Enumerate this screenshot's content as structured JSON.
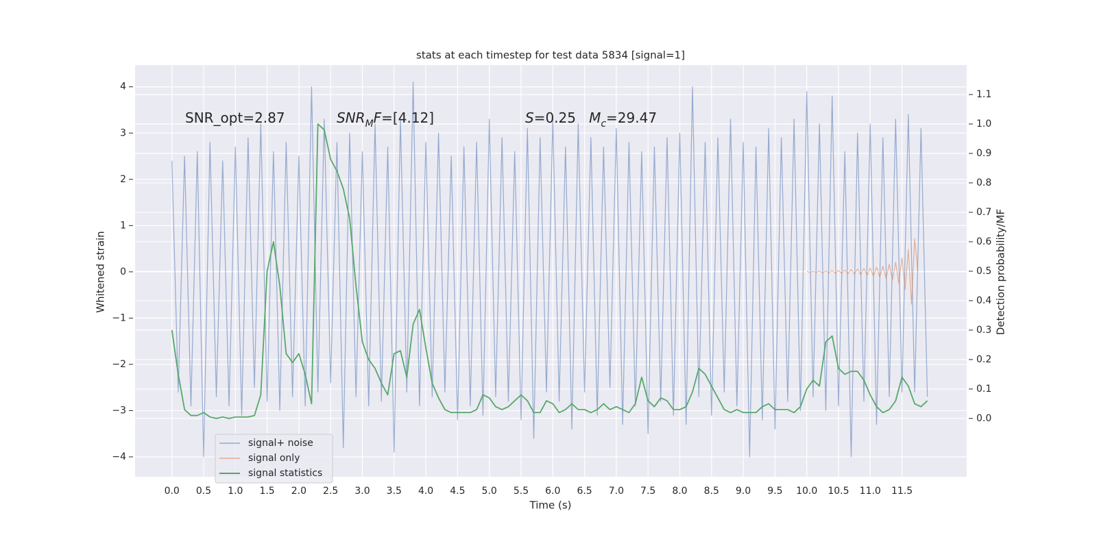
{
  "chart_data": {
    "type": "line",
    "title": "stats at each timestep for test data 5834 [signal=1]",
    "xlabel": "Time (s)",
    "ylabel": "Whitened strain",
    "y2label": "Detection probability/MF",
    "grid": true,
    "legend": "lower left",
    "annotations": [
      [
        {
          "text": "SNR_opt=2.87"
        }
      ],
      [
        {
          "text": "SNR",
          "italic": true
        },
        {
          "text": "M",
          "italic": true,
          "sub": true
        },
        {
          "text": "F",
          "italic": true
        },
        {
          "text": "=[4.12]"
        }
      ],
      [
        {
          "text": "S",
          "italic": true
        },
        {
          "text": "=0.25   "
        },
        {
          "text": "M",
          "italic": true
        },
        {
          "text": "c",
          "italic": true,
          "sub": true
        },
        {
          "text": "=29.47"
        }
      ]
    ],
    "xlim": [
      -0.58,
      12.52
    ],
    "ylim": [
      -4.43,
      4.47
    ],
    "y2lim": [
      -0.198,
      1.2
    ],
    "xticks": [
      {
        "value": 0,
        "label": "0.0"
      },
      {
        "value": 0.5,
        "label": "0.5"
      },
      {
        "value": 1,
        "label": "1.0"
      },
      {
        "value": 1.5,
        "label": "1.5"
      },
      {
        "value": 2,
        "label": "2.0"
      },
      {
        "value": 2.5,
        "label": "2.5"
      },
      {
        "value": 3,
        "label": "3.0"
      },
      {
        "value": 3.5,
        "label": "3.5"
      },
      {
        "value": 4,
        "label": "4.0"
      },
      {
        "value": 4.5,
        "label": "4.5"
      },
      {
        "value": 5,
        "label": "5.0"
      },
      {
        "value": 5.5,
        "label": "5.5"
      },
      {
        "value": 6,
        "label": "6.0"
      },
      {
        "value": 6.5,
        "label": "6.5"
      },
      {
        "value": 7,
        "label": "7.0"
      },
      {
        "value": 7.5,
        "label": "7.5"
      },
      {
        "value": 8,
        "label": "8.0"
      },
      {
        "value": 8.5,
        "label": "8.5"
      },
      {
        "value": 9,
        "label": "9.0"
      },
      {
        "value": 9.5,
        "label": "9.5"
      },
      {
        "value": 10,
        "label": "10.0"
      },
      {
        "value": 10.5,
        "label": "10.5"
      },
      {
        "value": 11,
        "label": "11.0"
      },
      {
        "value": 11.5,
        "label": "11.5"
      }
    ],
    "yticks": [
      {
        "value": -4,
        "label": "−4"
      },
      {
        "value": -3,
        "label": "−3"
      },
      {
        "value": -2,
        "label": "−2"
      },
      {
        "value": -1,
        "label": "−1"
      },
      0,
      1,
      2,
      3,
      4
    ],
    "y2ticks": [
      {
        "value": 0,
        "label": "0.0"
      },
      {
        "value": 0.1,
        "label": "0.1"
      },
      {
        "value": 0.2,
        "label": "0.2"
      },
      {
        "value": 0.3,
        "label": "0.3"
      },
      {
        "value": 0.4,
        "label": "0.4"
      },
      {
        "value": 0.5,
        "label": "0.5"
      },
      {
        "value": 0.6,
        "label": "0.6"
      },
      {
        "value": 0.7,
        "label": "0.7"
      },
      {
        "value": 0.8,
        "label": "0.8"
      },
      {
        "value": 0.9,
        "label": "0.9"
      },
      {
        "value": 1,
        "label": "1.0"
      },
      {
        "value": 1.1,
        "label": "1.1"
      }
    ],
    "x": [
      0.0,
      0.1,
      0.2,
      0.3,
      0.4,
      0.5,
      0.6,
      0.7,
      0.8,
      0.9,
      1.0,
      1.1,
      1.2,
      1.3,
      1.4,
      1.5,
      1.6,
      1.7,
      1.8,
      1.9,
      2.0,
      2.1,
      2.2,
      2.3,
      2.4,
      2.5,
      2.6,
      2.7,
      2.8,
      2.9,
      3.0,
      3.1,
      3.2,
      3.3,
      3.4,
      3.5,
      3.6,
      3.7,
      3.8,
      3.9,
      4.0,
      4.1,
      4.2,
      4.3,
      4.4,
      4.5,
      4.6,
      4.7,
      4.8,
      4.9,
      5.0,
      5.1,
      5.2,
      5.3,
      5.4,
      5.5,
      5.6,
      5.7,
      5.8,
      5.9,
      6.0,
      6.1,
      6.2,
      6.3,
      6.4,
      6.5,
      6.6,
      6.7,
      6.8,
      6.9,
      7.0,
      7.1,
      7.2,
      7.3,
      7.4,
      7.5,
      7.6,
      7.7,
      7.8,
      7.9,
      8.0,
      8.1,
      8.2,
      8.3,
      8.4,
      8.5,
      8.6,
      8.7,
      8.8,
      8.9,
      9.0,
      9.1,
      9.2,
      9.3,
      9.4,
      9.5,
      9.6,
      9.7,
      9.8,
      9.9,
      10.0,
      10.1,
      10.2,
      10.3,
      10.4,
      10.5,
      10.6,
      10.7,
      10.8,
      10.9,
      11.0,
      11.1,
      11.2,
      11.3,
      11.4,
      11.5,
      11.6,
      11.7,
      11.8,
      11.9
    ],
    "series": [
      {
        "name": "signal+ noise",
        "color": "#4c72b0",
        "values": [
          2.4,
          -2.6,
          2.5,
          -2.9,
          2.6,
          -4.0,
          2.8,
          -2.7,
          2.4,
          -2.9,
          2.7,
          -3.1,
          2.9,
          -2.5,
          3.2,
          -2.8,
          2.6,
          -3.0,
          2.8,
          -2.7,
          2.5,
          -2.9,
          4.0,
          -2.6,
          3.3,
          -2.4,
          2.8,
          -3.8,
          3.0,
          -2.7,
          2.6,
          -2.9,
          3.2,
          -2.8,
          2.7,
          -3.9,
          3.3,
          -2.6,
          4.1,
          -2.9,
          2.8,
          -2.7,
          3.0,
          -2.6,
          2.5,
          -3.2,
          2.7,
          -2.9,
          2.8,
          -3.1,
          3.3,
          -2.7,
          2.9,
          -2.8,
          2.6,
          -3.2,
          3.1,
          -3.6,
          2.9,
          -2.6,
          3.3,
          -2.8,
          2.7,
          -3.4,
          3.2,
          -2.6,
          2.9,
          -3.1,
          2.7,
          -2.5,
          3.1,
          -3.3,
          2.8,
          -2.9,
          2.6,
          -3.5,
          2.7,
          -2.8,
          2.9,
          -3.1,
          3.0,
          -3.3,
          4.0,
          -2.7,
          2.8,
          -3.1,
          2.9,
          -2.6,
          3.3,
          -2.9,
          2.8,
          -4.0,
          2.7,
          -3.2,
          3.1,
          -3.4,
          2.9,
          -2.8,
          3.3,
          -3.0,
          3.9,
          -2.7,
          3.2,
          -3.0,
          3.8,
          -2.9,
          2.6,
          -4.0,
          3.0,
          -2.8,
          3.2,
          -3.3,
          2.9,
          -2.7,
          3.3,
          -2.6,
          3.4,
          -2.6,
          3.1,
          -2.7
        ]
      },
      {
        "name": "signal only",
        "color": "#dd8452",
        "x": [
          10.0,
          10.05,
          10.1,
          10.15,
          10.2,
          10.25,
          10.3,
          10.35,
          10.4,
          10.45,
          10.5,
          10.55,
          10.6,
          10.65,
          10.7,
          10.75,
          10.8,
          10.85,
          10.9,
          10.95,
          11.0,
          11.05,
          11.1,
          11.15,
          11.2,
          11.25,
          11.3,
          11.35,
          11.4,
          11.45,
          11.5,
          11.55,
          11.6,
          11.65,
          11.7,
          11.75
        ],
        "values": [
          0.01,
          -0.01,
          0.01,
          -0.01,
          0.02,
          -0.02,
          0.02,
          -0.02,
          0.03,
          -0.03,
          0.03,
          -0.03,
          0.04,
          -0.04,
          0.05,
          -0.05,
          0.06,
          -0.06,
          0.07,
          -0.07,
          0.08,
          -0.09,
          0.1,
          -0.11,
          0.12,
          -0.14,
          0.16,
          -0.18,
          0.21,
          -0.25,
          0.3,
          -0.38,
          0.48,
          -0.7,
          0.72,
          0.0
        ]
      },
      {
        "name": "signal statistics",
        "color": "#55a868",
        "axis": "y2",
        "values": [
          0.3,
          0.15,
          0.03,
          0.01,
          0.01,
          0.02,
          0.005,
          0.0,
          0.005,
          0.0,
          0.005,
          0.005,
          0.005,
          0.01,
          0.08,
          0.5,
          0.6,
          0.45,
          0.22,
          0.19,
          0.22,
          0.15,
          0.05,
          1.0,
          0.98,
          0.88,
          0.84,
          0.78,
          0.68,
          0.45,
          0.26,
          0.2,
          0.17,
          0.12,
          0.08,
          0.22,
          0.23,
          0.14,
          0.32,
          0.37,
          0.24,
          0.12,
          0.07,
          0.03,
          0.02,
          0.02,
          0.02,
          0.02,
          0.03,
          0.08,
          0.07,
          0.04,
          0.03,
          0.04,
          0.06,
          0.08,
          0.06,
          0.02,
          0.02,
          0.06,
          0.05,
          0.02,
          0.03,
          0.05,
          0.03,
          0.03,
          0.02,
          0.03,
          0.05,
          0.03,
          0.04,
          0.03,
          0.02,
          0.05,
          0.14,
          0.06,
          0.04,
          0.07,
          0.06,
          0.03,
          0.03,
          0.04,
          0.09,
          0.17,
          0.15,
          0.11,
          0.07,
          0.03,
          0.02,
          0.03,
          0.02,
          0.02,
          0.02,
          0.04,
          0.05,
          0.03,
          0.03,
          0.03,
          0.02,
          0.04,
          0.1,
          0.13,
          0.11,
          0.26,
          0.28,
          0.17,
          0.15,
          0.16,
          0.16,
          0.13,
          0.08,
          0.04,
          0.02,
          0.03,
          0.06,
          0.14,
          0.11,
          0.05,
          0.04,
          0.06
        ]
      }
    ]
  }
}
